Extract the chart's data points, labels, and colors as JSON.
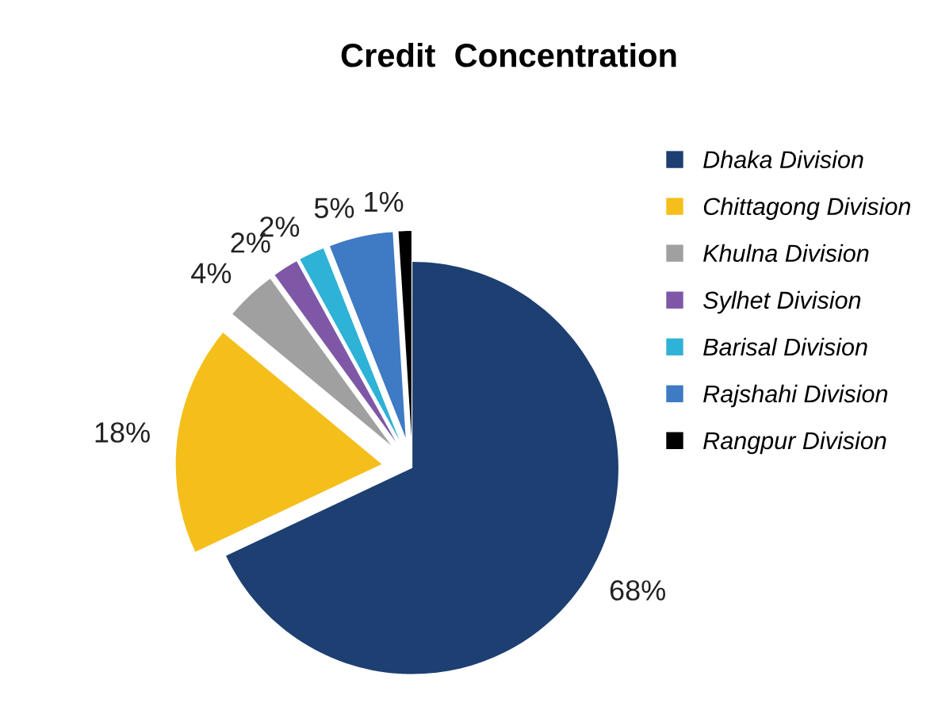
{
  "chart_data": {
    "type": "pie",
    "title": "Credit  Concentration",
    "categories": [
      "Dhaka Division",
      "Chittagong Division",
      "Khulna Division",
      "Sylhet Division",
      "Barisal Division",
      "Rajshahi Division",
      "Rangpur Division"
    ],
    "values": [
      68,
      18,
      4,
      2,
      2,
      5,
      1
    ],
    "value_labels": [
      "68%",
      "18%",
      "4%",
      "2%",
      "2%",
      "5%",
      "1%"
    ],
    "colors": [
      "#1d3f72",
      "#f5bf1b",
      "#a0a0a0",
      "#7e58a6",
      "#2eb2d6",
      "#3f7ac4",
      "#000000"
    ],
    "legend": "right"
  }
}
